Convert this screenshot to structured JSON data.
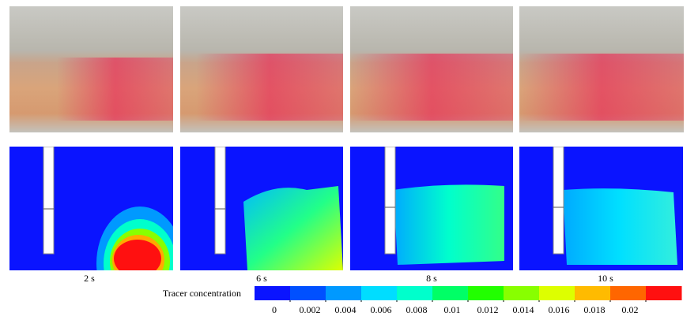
{
  "panels": [
    {
      "label": "2 s"
    },
    {
      "label": "6 s"
    },
    {
      "label": "8 s"
    },
    {
      "label": "10 s"
    }
  ],
  "colorbar": {
    "title": "Tracer concentration",
    "ticks": [
      0,
      0.002,
      0.004,
      0.006,
      0.008,
      0.01,
      0.012,
      0.014,
      0.016,
      0.018,
      0.02
    ],
    "colors": [
      "#0a14ff",
      "#0050ff",
      "#0099ff",
      "#00ddff",
      "#00ffcc",
      "#00ff66",
      "#22ff00",
      "#88ff00",
      "#ddff00",
      "#ffbb00",
      "#ff6600",
      "#ff1010"
    ]
  }
}
